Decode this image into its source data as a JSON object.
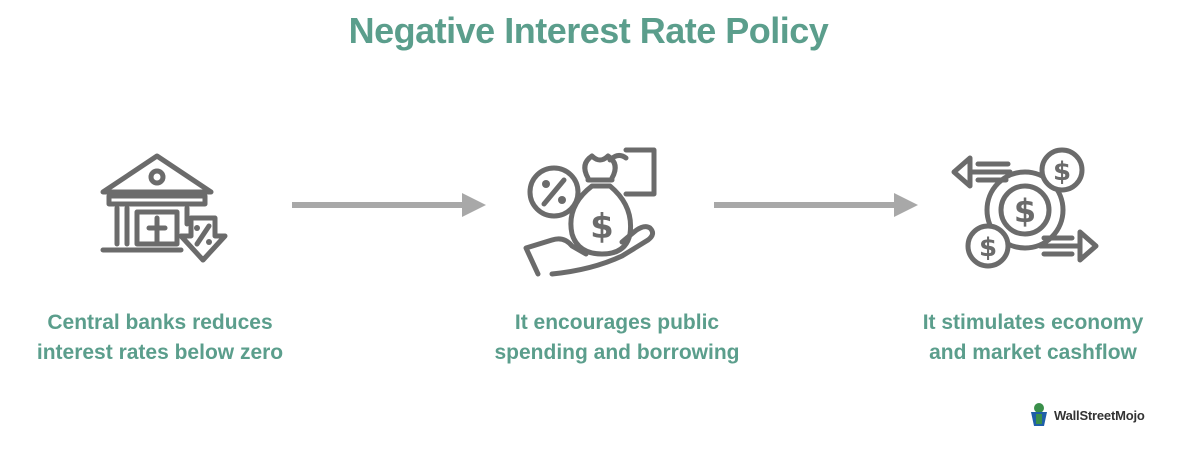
{
  "title": "Negative Interest Rate Policy",
  "colors": {
    "accent": "#5b9e8c",
    "icon": "#6b6b6b",
    "arrow": "#a8a8a8",
    "brand_blue": "#1f5fa8",
    "brand_green": "#3a8f4a"
  },
  "steps": [
    {
      "icon": "bank-down-icon",
      "line1": "Central banks reduces",
      "line2": "interest rates below zero"
    },
    {
      "icon": "money-bag-hand-icon",
      "line1": "It encourages public",
      "line2": "spending and borrowing"
    },
    {
      "icon": "cashflow-icon",
      "line1": "It stimulates economy",
      "line2": "and market cashflow"
    }
  ],
  "brand": {
    "name": "WallStreetMojo",
    "logo_icon": "wallstreetmojo-logo-icon"
  }
}
